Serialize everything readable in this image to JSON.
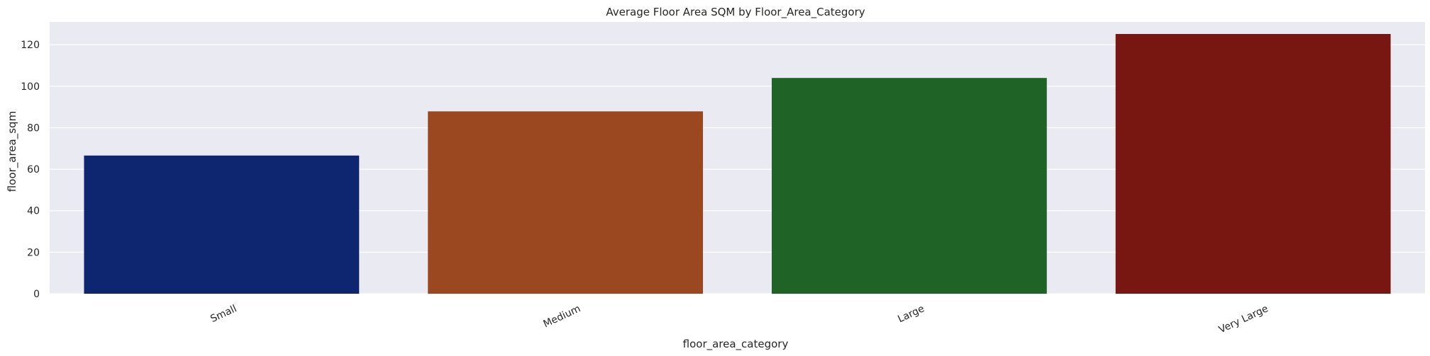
{
  "chart_data": {
    "type": "bar",
    "title": "Average Floor Area SQM by Floor_Area_Category",
    "xlabel": "floor_area_category",
    "ylabel": "floor_area_sqm",
    "categories": [
      "Small",
      "Medium",
      "Large",
      "Very Large"
    ],
    "values": [
      66.6,
      87.9,
      104.0,
      125.2
    ],
    "colors": [
      "#0e2570",
      "#9b4820",
      "#1f6426",
      "#781612"
    ],
    "ylim": [
      0,
      131
    ],
    "yticks": [
      0,
      20,
      40,
      60,
      80,
      100,
      120
    ],
    "grid": true,
    "background": "#eaeaf2",
    "x_tick_rotation_deg": 25
  }
}
